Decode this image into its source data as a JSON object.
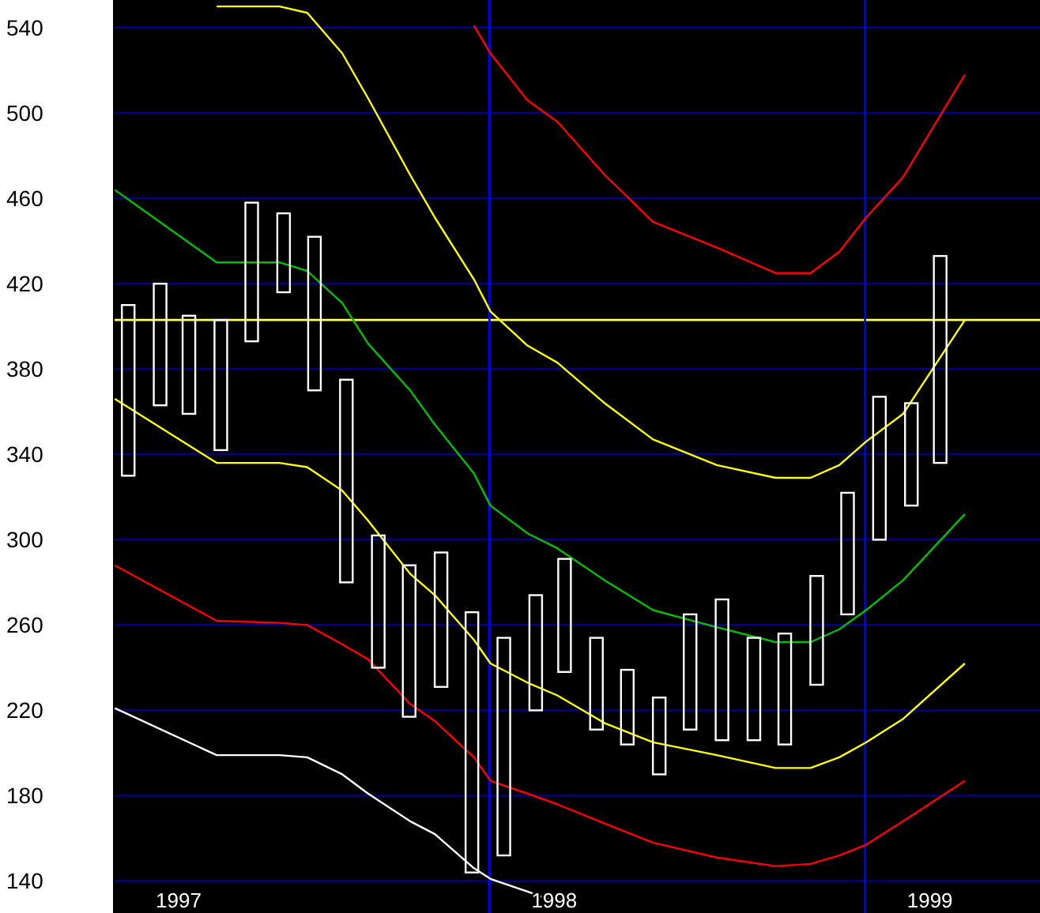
{
  "chart_data": {
    "type": "bar",
    "x": [
      "1997-01-15",
      "1997-02-15",
      "1997-03-15",
      "1997-04-15",
      "1997-05-15",
      "1997-06-15",
      "1997-07-15",
      "1997-08-15",
      "1997-09-15",
      "1997-10-15",
      "1997-11-15",
      "1997-12-15",
      "1998-01-15",
      "1998-02-15",
      "1998-03-15",
      "1998-04-15",
      "1998-05-15",
      "1998-06-15",
      "1998-07-15",
      "1998-08-15",
      "1998-09-15",
      "1998-10-15",
      "1998-11-15",
      "1998-12-15",
      "1999-01-15",
      "1999-02-15",
      "1999-03-15"
    ],
    "base": [
      330,
      363,
      359,
      342,
      393,
      416,
      370,
      280,
      240,
      217,
      231,
      144,
      152,
      220,
      238,
      211,
      204,
      190,
      211,
      206,
      206,
      204,
      232,
      265,
      300,
      316,
      336
    ],
    "values": [
      80,
      57,
      46,
      61,
      65,
      37,
      72,
      95,
      62,
      71,
      63,
      122,
      102,
      54,
      53,
      43,
      35,
      36,
      54,
      66,
      48,
      52,
      51,
      57,
      67,
      48,
      97
    ],
    "color": "#ffffff",
    "series": [
      {
        "type": "line",
        "color": "#ff0000",
        "x": [
          "1997-12-17",
          "1998-01-02",
          "1998-02-07",
          "1998-03-08",
          "1998-04-23",
          "1998-06-09",
          "1998-08-10",
          "1998-10-06",
          "1998-11-09",
          "1998-12-07",
          "1999-01-02",
          "1999-02-07",
          "1999-04-08"
        ],
        "values": [
          541,
          528,
          506,
          496,
          471,
          449,
          437,
          425,
          425,
          435,
          451,
          470,
          518
        ]
      },
      {
        "type": "line",
        "color": "#ffff00",
        "x": [
          "1997-04-11",
          "1997-06-11",
          "1997-07-08",
          "1997-08-11",
          "1997-09-05",
          "1997-10-16",
          "1997-11-09",
          "1997-12-17",
          "1998-01-02",
          "1998-02-07",
          "1998-03-08",
          "1998-04-23",
          "1998-06-09",
          "1998-08-10",
          "1998-10-06",
          "1998-11-09",
          "1998-12-07",
          "1999-01-02",
          "1999-02-07",
          "1999-04-08"
        ],
        "values": [
          550,
          550,
          547,
          528,
          507,
          471,
          451,
          422,
          407,
          391,
          383,
          364,
          347,
          335,
          329,
          329,
          335,
          346,
          359,
          403
        ]
      },
      {
        "type": "line",
        "color": "#00c000",
        "x": [
          "1997-01-02",
          "1997-04-11",
          "1997-06-11",
          "1997-07-08",
          "1997-08-11",
          "1997-09-05",
          "1997-10-16",
          "1997-11-09",
          "1997-12-17",
          "1998-01-02",
          "1998-02-07",
          "1998-03-08",
          "1998-04-23",
          "1998-06-09",
          "1998-08-10",
          "1998-10-06",
          "1998-11-09",
          "1998-12-07",
          "1999-01-02",
          "1999-02-07",
          "1999-04-08"
        ],
        "values": [
          464,
          430,
          430,
          426,
          411,
          392,
          370,
          354,
          331,
          316,
          303,
          296,
          281,
          267,
          259,
          252,
          252,
          258,
          267,
          281,
          312
        ]
      },
      {
        "type": "line",
        "color": "#ffff00",
        "x": [
          "1997-01-02",
          "1997-04-11",
          "1997-06-11",
          "1997-07-08",
          "1997-08-11",
          "1997-09-05",
          "1997-10-16",
          "1997-11-09",
          "1997-12-17",
          "1998-01-02",
          "1998-02-07",
          "1998-03-08",
          "1998-04-23",
          "1998-06-09",
          "1998-08-10",
          "1998-10-06",
          "1998-11-09",
          "1998-12-07",
          "1999-01-02",
          "1999-02-07",
          "1999-04-08"
        ],
        "values": [
          366,
          336,
          336,
          334,
          323,
          309,
          284,
          274,
          253,
          242,
          233,
          227,
          214,
          205,
          199,
          193,
          193,
          198,
          205,
          216,
          242
        ]
      },
      {
        "type": "line",
        "color": "#ff0000",
        "x": [
          "1997-01-02",
          "1997-04-11",
          "1997-06-11",
          "1997-07-08",
          "1997-08-11",
          "1997-09-05",
          "1997-10-16",
          "1997-11-09",
          "1997-12-17",
          "1998-01-02",
          "1998-02-07",
          "1998-03-08",
          "1998-04-23",
          "1998-06-09",
          "1998-08-10",
          "1998-10-06",
          "1998-11-09",
          "1998-12-07",
          "1999-01-02",
          "1999-02-07",
          "1999-04-08"
        ],
        "values": [
          288,
          262,
          261,
          260,
          251,
          244,
          223,
          215,
          198,
          187,
          181,
          176,
          167,
          158,
          151,
          147,
          148,
          152,
          157,
          168,
          187
        ]
      },
      {
        "type": "line",
        "color": "#ffffff",
        "x": [
          "1997-01-02",
          "1997-04-11",
          "1997-06-11",
          "1997-07-08",
          "1997-08-11",
          "1997-09-05",
          "1997-10-16",
          "1997-11-09",
          "1997-12-17",
          "1998-01-02",
          "1998-02-07",
          "1998-03-08"
        ],
        "values": [
          221,
          199,
          199,
          198,
          190,
          181,
          168,
          162,
          146,
          141,
          135,
          130
        ]
      }
    ],
    "xlim": [
      "1997-01-01",
      "1999-06-20"
    ],
    "xticks": [
      {
        "value": "1997-03-05",
        "label": "1997"
      },
      {
        "value": "1998-03-05",
        "label": "1998"
      },
      {
        "value": "1999-03-05",
        "label": "1999"
      }
    ],
    "ylim": [
      125,
      553
    ],
    "yticks": [
      140,
      180,
      220,
      260,
      300,
      340,
      380,
      420,
      460,
      500,
      540
    ],
    "grid": "y",
    "ref_lines": [
      {
        "axis": "y",
        "value": 403,
        "color": "#ffff60"
      },
      {
        "axis": "x",
        "value": "1998-01-01",
        "color": "#0000ff"
      },
      {
        "axis": "x",
        "value": "1999-01-01",
        "color": "#0000ff"
      }
    ]
  }
}
